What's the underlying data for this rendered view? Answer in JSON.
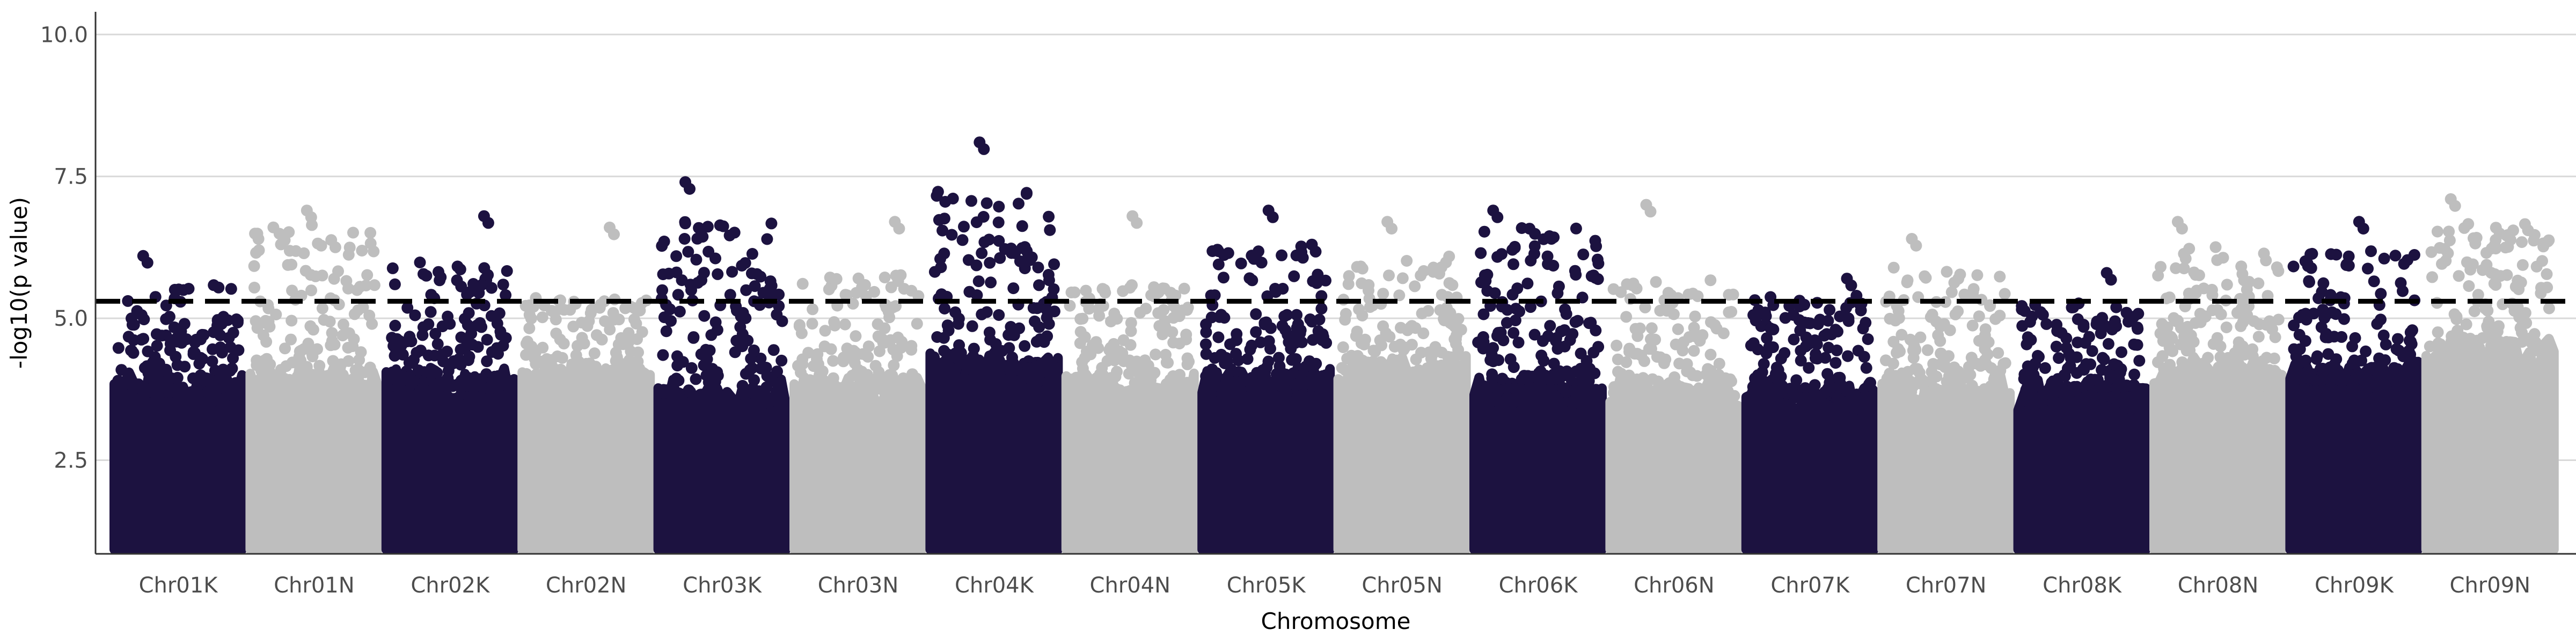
{
  "chart_data": {
    "type": "scatter",
    "subtype": "manhattan",
    "title": "",
    "xlabel": "Chromosome",
    "ylabel": "-log10(p value)",
    "ylim": [
      0.85,
      10.4
    ],
    "yticks": [
      2.5,
      5.0,
      7.5,
      10.0
    ],
    "ytick_labels": [
      "2.5",
      "5.0",
      "7.5",
      "10.0"
    ],
    "threshold": 5.3,
    "threshold_style": "dashed",
    "grid": "horizontal-major",
    "legend": "none",
    "colors": {
      "dark": "#1c1240",
      "light": "#bebebe",
      "threshold": "#000000",
      "grid": "#d9d9d9"
    },
    "categories": [
      "Chr01K",
      "Chr01N",
      "Chr02K",
      "Chr02N",
      "Chr03K",
      "Chr03N",
      "Chr04K",
      "Chr04N",
      "Chr05K",
      "Chr05N",
      "Chr06K",
      "Chr06N",
      "Chr07K",
      "Chr07N",
      "Chr08K",
      "Chr08N",
      "Chr09K",
      "Chr09N"
    ],
    "series": [
      {
        "chromosome": "Chr01K",
        "color": "dark",
        "peak": 6.1,
        "upper": 5.6,
        "background_max": 3.7
      },
      {
        "chromosome": "Chr01N",
        "color": "light",
        "peak": 6.9,
        "upper": 6.7,
        "background_max": 3.8
      },
      {
        "chromosome": "Chr02K",
        "color": "dark",
        "peak": 6.8,
        "upper": 6.0,
        "background_max": 3.8
      },
      {
        "chromosome": "Chr02N",
        "color": "light",
        "peak": 6.6,
        "upper": 5.4,
        "background_max": 3.9
      },
      {
        "chromosome": "Chr03K",
        "color": "dark",
        "peak": 7.4,
        "upper": 6.7,
        "background_max": 3.6
      },
      {
        "chromosome": "Chr03N",
        "color": "light",
        "peak": 6.7,
        "upper": 5.8,
        "background_max": 3.7
      },
      {
        "chromosome": "Chr04K",
        "color": "dark",
        "peak": 8.1,
        "upper": 7.3,
        "background_max": 4.1
      },
      {
        "chromosome": "Chr04N",
        "color": "light",
        "peak": 6.8,
        "upper": 5.6,
        "background_max": 3.7
      },
      {
        "chromosome": "Chr05K",
        "color": "dark",
        "peak": 6.9,
        "upper": 6.3,
        "background_max": 3.8
      },
      {
        "chromosome": "Chr05N",
        "color": "light",
        "peak": 6.7,
        "upper": 6.1,
        "background_max": 4.0
      },
      {
        "chromosome": "Chr06K",
        "color": "dark",
        "peak": 6.9,
        "upper": 6.6,
        "background_max": 3.7
      },
      {
        "chromosome": "Chr06N",
        "color": "light",
        "peak": 7.0,
        "upper": 5.7,
        "background_max": 3.6
      },
      {
        "chromosome": "Chr07K",
        "color": "dark",
        "peak": 5.7,
        "upper": 5.4,
        "background_max": 3.6
      },
      {
        "chromosome": "Chr07N",
        "color": "light",
        "peak": 6.4,
        "upper": 5.9,
        "background_max": 3.7
      },
      {
        "chromosome": "Chr08K",
        "color": "dark",
        "peak": 5.8,
        "upper": 5.3,
        "background_max": 3.6
      },
      {
        "chromosome": "Chr08N",
        "color": "light",
        "peak": 6.7,
        "upper": 6.3,
        "background_max": 4.0
      },
      {
        "chromosome": "Chr09K",
        "color": "dark",
        "peak": 6.7,
        "upper": 6.2,
        "background_max": 3.9
      },
      {
        "chromosome": "Chr09N",
        "color": "light",
        "peak": 7.1,
        "upper": 6.7,
        "background_max": 4.3
      }
    ]
  }
}
